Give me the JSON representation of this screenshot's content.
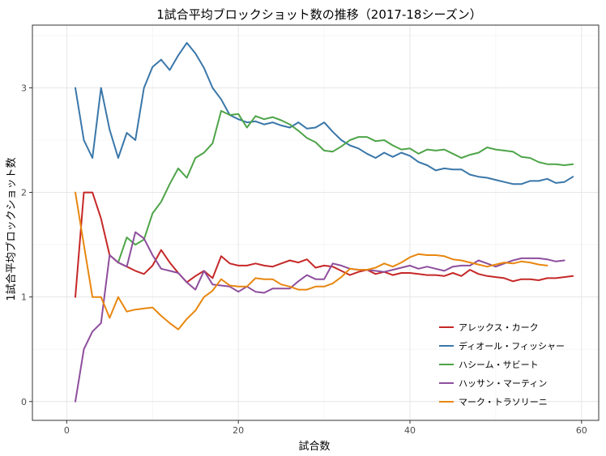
{
  "chart_data": {
    "type": "line",
    "title": "1試合平均ブロックショット数の推移（2017-18シーズン）",
    "xlabel": "試合数",
    "ylabel": "1試合平均ブロックショット数",
    "xlim": [
      -4,
      62
    ],
    "ylim": [
      -0.18,
      3.6
    ],
    "xticks": [
      0,
      20,
      40,
      60
    ],
    "yticks": [
      0,
      1,
      2,
      3
    ],
    "grid": true,
    "legend_position": "bottom-right",
    "series": [
      {
        "name": "アレックス・カーク",
        "color": "#C62828",
        "x": [
          1,
          2,
          3,
          4,
          5,
          6,
          7,
          8,
          9,
          10,
          11,
          12,
          13,
          14,
          15,
          16,
          17,
          18,
          19,
          20,
          21,
          22,
          23,
          24,
          25,
          26,
          27,
          28,
          29,
          30,
          31,
          32,
          33,
          34,
          35,
          36,
          37,
          38,
          39,
          40,
          41,
          42,
          43,
          44,
          45,
          46,
          47,
          48,
          49,
          50,
          51,
          52,
          53,
          54,
          55,
          56,
          57,
          58,
          59
        ],
        "y": [
          1.0,
          2.0,
          2.0,
          1.75,
          1.4,
          1.33,
          1.29,
          1.25,
          1.22,
          1.3,
          1.45,
          1.33,
          1.23,
          1.14,
          1.2,
          1.25,
          1.18,
          1.39,
          1.32,
          1.3,
          1.3,
          1.32,
          1.3,
          1.29,
          1.32,
          1.35,
          1.33,
          1.36,
          1.28,
          1.3,
          1.29,
          1.25,
          1.21,
          1.24,
          1.26,
          1.22,
          1.24,
          1.21,
          1.23,
          1.23,
          1.22,
          1.21,
          1.21,
          1.2,
          1.23,
          1.2,
          1.26,
          1.22,
          1.2,
          1.19,
          1.18,
          1.15,
          1.17,
          1.17,
          1.16,
          1.18,
          1.18,
          1.19,
          1.2
        ]
      },
      {
        "name": "ディオール・フィッシャー",
        "color": "#3A77A9",
        "x": [
          1,
          2,
          3,
          4,
          5,
          6,
          7,
          8,
          9,
          10,
          11,
          12,
          13,
          14,
          15,
          16,
          17,
          18,
          19,
          20,
          21,
          22,
          23,
          24,
          25,
          26,
          27,
          28,
          29,
          30,
          31,
          32,
          33,
          34,
          35,
          36,
          37,
          38,
          39,
          40,
          41,
          42,
          43,
          44,
          45,
          46,
          47,
          48,
          49,
          50,
          51,
          52,
          53,
          54,
          55,
          56,
          57,
          58,
          59
        ],
        "y": [
          3.0,
          2.5,
          2.33,
          3.0,
          2.6,
          2.33,
          2.57,
          2.5,
          3.0,
          3.2,
          3.27,
          3.17,
          3.31,
          3.43,
          3.33,
          3.19,
          3.0,
          2.89,
          2.74,
          2.7,
          2.67,
          2.68,
          2.65,
          2.67,
          2.64,
          2.62,
          2.67,
          2.61,
          2.62,
          2.67,
          2.58,
          2.5,
          2.45,
          2.42,
          2.37,
          2.33,
          2.38,
          2.34,
          2.38,
          2.35,
          2.29,
          2.26,
          2.21,
          2.23,
          2.22,
          2.22,
          2.17,
          2.15,
          2.14,
          2.12,
          2.1,
          2.08,
          2.08,
          2.11,
          2.11,
          2.13,
          2.09,
          2.1,
          2.15
        ]
      },
      {
        "name": "ハシーム・サビート",
        "color": "#4EA448",
        "x": [
          6,
          7,
          8,
          9,
          10,
          11,
          12,
          13,
          14,
          15,
          16,
          17,
          18,
          19,
          20,
          21,
          22,
          23,
          24,
          25,
          26,
          27,
          28,
          29,
          30,
          31,
          32,
          33,
          34,
          35,
          36,
          37,
          38,
          39,
          40,
          41,
          42,
          43,
          44,
          45,
          46,
          47,
          48,
          49,
          50,
          51,
          52,
          53,
          54,
          55,
          56,
          57,
          58,
          59
        ],
        "y": [
          1.33,
          1.57,
          1.5,
          1.55,
          1.8,
          1.91,
          2.08,
          2.23,
          2.14,
          2.33,
          2.38,
          2.47,
          2.78,
          2.74,
          2.75,
          2.62,
          2.73,
          2.7,
          2.72,
          2.69,
          2.65,
          2.59,
          2.52,
          2.48,
          2.4,
          2.39,
          2.44,
          2.5,
          2.53,
          2.53,
          2.49,
          2.5,
          2.45,
          2.41,
          2.42,
          2.37,
          2.41,
          2.4,
          2.41,
          2.37,
          2.33,
          2.36,
          2.38,
          2.43,
          2.41,
          2.4,
          2.39,
          2.34,
          2.33,
          2.29,
          2.27,
          2.27,
          2.26,
          2.27
        ]
      },
      {
        "name": "ハッサン・マーティン",
        "color": "#8E4E9D",
        "x": [
          1,
          2,
          3,
          4,
          5,
          6,
          7,
          8,
          9,
          10,
          11,
          12,
          13,
          14,
          15,
          16,
          17,
          18,
          19,
          20,
          21,
          22,
          23,
          24,
          25,
          26,
          27,
          28,
          29,
          30,
          31,
          32,
          33,
          34,
          35,
          36,
          37,
          38,
          39,
          40,
          41,
          42,
          43,
          44,
          45,
          46,
          47,
          48,
          49,
          50,
          51,
          52,
          53,
          54,
          55,
          56,
          57,
          58
        ],
        "y": [
          0.0,
          0.5,
          0.67,
          0.75,
          1.4,
          1.33,
          1.29,
          1.62,
          1.56,
          1.4,
          1.27,
          1.25,
          1.23,
          1.14,
          1.07,
          1.25,
          1.12,
          1.11,
          1.1,
          1.05,
          1.1,
          1.05,
          1.04,
          1.08,
          1.08,
          1.08,
          1.15,
          1.21,
          1.17,
          1.17,
          1.32,
          1.3,
          1.27,
          1.26,
          1.26,
          1.25,
          1.24,
          1.26,
          1.28,
          1.3,
          1.27,
          1.29,
          1.27,
          1.25,
          1.29,
          1.3,
          1.3,
          1.35,
          1.32,
          1.29,
          1.32,
          1.35,
          1.37,
          1.37,
          1.37,
          1.36,
          1.34,
          1.35
        ]
      },
      {
        "name": "マーク・トラソリーニ",
        "color": "#E8870F",
        "x": [
          1,
          2,
          3,
          4,
          5,
          6,
          7,
          8,
          9,
          10,
          11,
          12,
          13,
          14,
          15,
          16,
          17,
          18,
          19,
          20,
          21,
          22,
          23,
          24,
          25,
          26,
          27,
          28,
          29,
          30,
          31,
          32,
          33,
          34,
          35,
          36,
          37,
          38,
          39,
          40,
          41,
          42,
          43,
          44,
          45,
          46,
          47,
          48,
          49,
          50,
          51,
          52,
          53,
          54,
          55,
          56
        ],
        "y": [
          2.0,
          1.5,
          1.0,
          1.0,
          0.8,
          1.0,
          0.86,
          0.88,
          0.89,
          0.9,
          0.82,
          0.75,
          0.69,
          0.79,
          0.87,
          1.0,
          1.06,
          1.17,
          1.11,
          1.1,
          1.1,
          1.18,
          1.17,
          1.17,
          1.12,
          1.1,
          1.07,
          1.07,
          1.1,
          1.1,
          1.13,
          1.19,
          1.27,
          1.26,
          1.26,
          1.28,
          1.32,
          1.29,
          1.33,
          1.38,
          1.41,
          1.4,
          1.4,
          1.39,
          1.36,
          1.35,
          1.33,
          1.31,
          1.29,
          1.31,
          1.33,
          1.32,
          1.34,
          1.33,
          1.31,
          1.3
        ]
      }
    ]
  }
}
